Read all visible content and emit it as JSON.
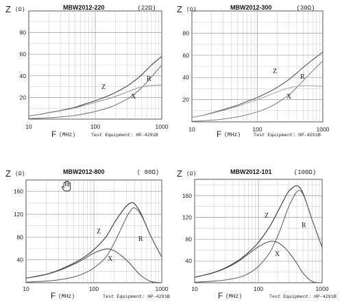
{
  "chart_data": [
    {
      "type": "line",
      "title": "MBW2012-220",
      "impedance_label": "(22Ω)",
      "ylabel": "Z",
      "y_unit": "(Ω)",
      "xlabel": "F",
      "x_unit": "(MHz)",
      "equipment": "Test Equipment: HP-4291B",
      "xscale": "log",
      "xlim": [
        10,
        1000
      ],
      "ylim": [
        0,
        100
      ],
      "yticks": [
        20,
        40,
        60,
        80
      ],
      "xticks": [
        "10",
        "100",
        "1000"
      ],
      "x": [
        10,
        15,
        20,
        30,
        50,
        70,
        100,
        150,
        200,
        300,
        400,
        500,
        700,
        1000
      ],
      "series": [
        {
          "name": "Z",
          "values": [
            3,
            4.5,
            6,
            8,
            11,
            14,
            17,
            21,
            24.5,
            30.5,
            36,
            41,
            50,
            58
          ]
        },
        {
          "name": "R",
          "values": [
            0.5,
            0.8,
            1.2,
            2,
            3.5,
            5,
            7,
            10,
            13,
            18.5,
            24,
            29,
            39,
            50
          ]
        },
        {
          "name": "X",
          "values": [
            3,
            4.3,
            5.8,
            7.7,
            10.4,
            13,
            15.5,
            18.5,
            21,
            25,
            28,
            29.8,
            31,
            31.5
          ]
        }
      ],
      "colors": {
        "Z": "#444444",
        "R": "#777777",
        "X": "#999999"
      }
    },
    {
      "type": "line",
      "title": "MBW2012-300",
      "impedance_label": "(30Ω)",
      "ylabel": "Z",
      "y_unit": "(Ω)",
      "xlabel": "F",
      "x_unit": "(MHz)",
      "equipment": "Test Equipment: HP-4291B",
      "xscale": "log",
      "xlim": [
        10,
        1000
      ],
      "ylim": [
        0,
        100
      ],
      "yticks": [
        20,
        40,
        60,
        80
      ],
      "xticks": [
        "10",
        "100",
        "1000"
      ],
      "x": [
        10,
        15,
        20,
        30,
        50,
        70,
        100,
        150,
        200,
        300,
        400,
        500,
        700,
        1000
      ],
      "series": [
        {
          "name": "Z",
          "values": [
            4,
            6,
            8,
            11,
            15,
            18.5,
            22,
            27,
            31,
            38,
            44,
            49,
            56,
            63
          ]
        },
        {
          "name": "R",
          "values": [
            0.5,
            1,
            1.5,
            2.5,
            4.5,
            6.5,
            9,
            13,
            17,
            24,
            31,
            37,
            46,
            55
          ]
        },
        {
          "name": "X",
          "values": [
            4,
            5.8,
            7.6,
            10.3,
            14,
            17,
            20,
            24,
            27,
            30.5,
            32,
            32.5,
            32.5,
            32
          ]
        }
      ],
      "colors": {
        "Z": "#555555",
        "R": "#888888",
        "X": "#aaaaaa"
      }
    },
    {
      "type": "line",
      "title": "MBW2012-800",
      "impedance_label": "( 80Ω)",
      "ylabel": "Z",
      "y_unit": "(Ω)",
      "xlabel": "F",
      "x_unit": "(MHz)",
      "equipment": "Test Equipment: HP-4291B",
      "xscale": "log",
      "xlim": [
        10,
        1000
      ],
      "ylim": [
        0,
        180
      ],
      "yticks": [
        40,
        80,
        120,
        160
      ],
      "xticks": [
        "10",
        "100",
        "1000"
      ],
      "x": [
        10,
        15,
        20,
        30,
        50,
        70,
        100,
        150,
        200,
        250,
        300,
        350,
        400,
        500,
        700,
        1000
      ],
      "series": [
        {
          "name": "Z",
          "values": [
            8,
            12,
            15,
            22,
            34,
            44,
            58,
            80,
            105,
            122,
            134,
            140,
            138,
            120,
            80,
            45
          ]
        },
        {
          "name": "R",
          "values": [
            1,
            2,
            3,
            5,
            10,
            16,
            26,
            45,
            70,
            94,
            114,
            127,
            131,
            118,
            80,
            45
          ]
        },
        {
          "name": "X",
          "values": [
            8,
            11.5,
            14.5,
            21,
            32,
            41,
            52,
            59,
            56,
            48,
            40,
            32,
            24,
            12,
            2,
            0
          ]
        }
      ],
      "colors": {
        "Z": "#333333",
        "R": "#666666",
        "X": "#555555"
      }
    },
    {
      "type": "line",
      "title": "MBW2012-101",
      "impedance_label": "(100Ω)",
      "ylabel": "Z",
      "y_unit": "(Ω)",
      "xlabel": "F",
      "x_unit": "(MHz)",
      "equipment": "Test Equipment: HP-4291B",
      "xscale": "log",
      "xlim": [
        10,
        1000
      ],
      "ylim": [
        0,
        190
      ],
      "yticks": [
        40,
        80,
        120,
        160
      ],
      "xticks": [
        "10",
        "100",
        "1000"
      ],
      "x": [
        10,
        15,
        20,
        30,
        50,
        70,
        100,
        150,
        200,
        250,
        300,
        400,
        500,
        700,
        1000
      ],
      "series": [
        {
          "name": "Z",
          "values": [
            10,
            15,
            19,
            27,
            42,
            56,
            74,
            103,
            130,
            152,
            168,
            178,
            165,
            115,
            65
          ]
        },
        {
          "name": "R",
          "values": [
            1,
            2,
            3,
            5,
            10,
            17,
            30,
            55,
            85,
            115,
            140,
            167,
            163,
            115,
            65
          ]
        },
        {
          "name": "X",
          "values": [
            10,
            14.5,
            18.5,
            26,
            40,
            53,
            66,
            76,
            74,
            66,
            56,
            36,
            18,
            2,
            0
          ]
        }
      ],
      "colors": {
        "Z": "#333333",
        "R": "#666666",
        "X": "#555555"
      }
    }
  ]
}
